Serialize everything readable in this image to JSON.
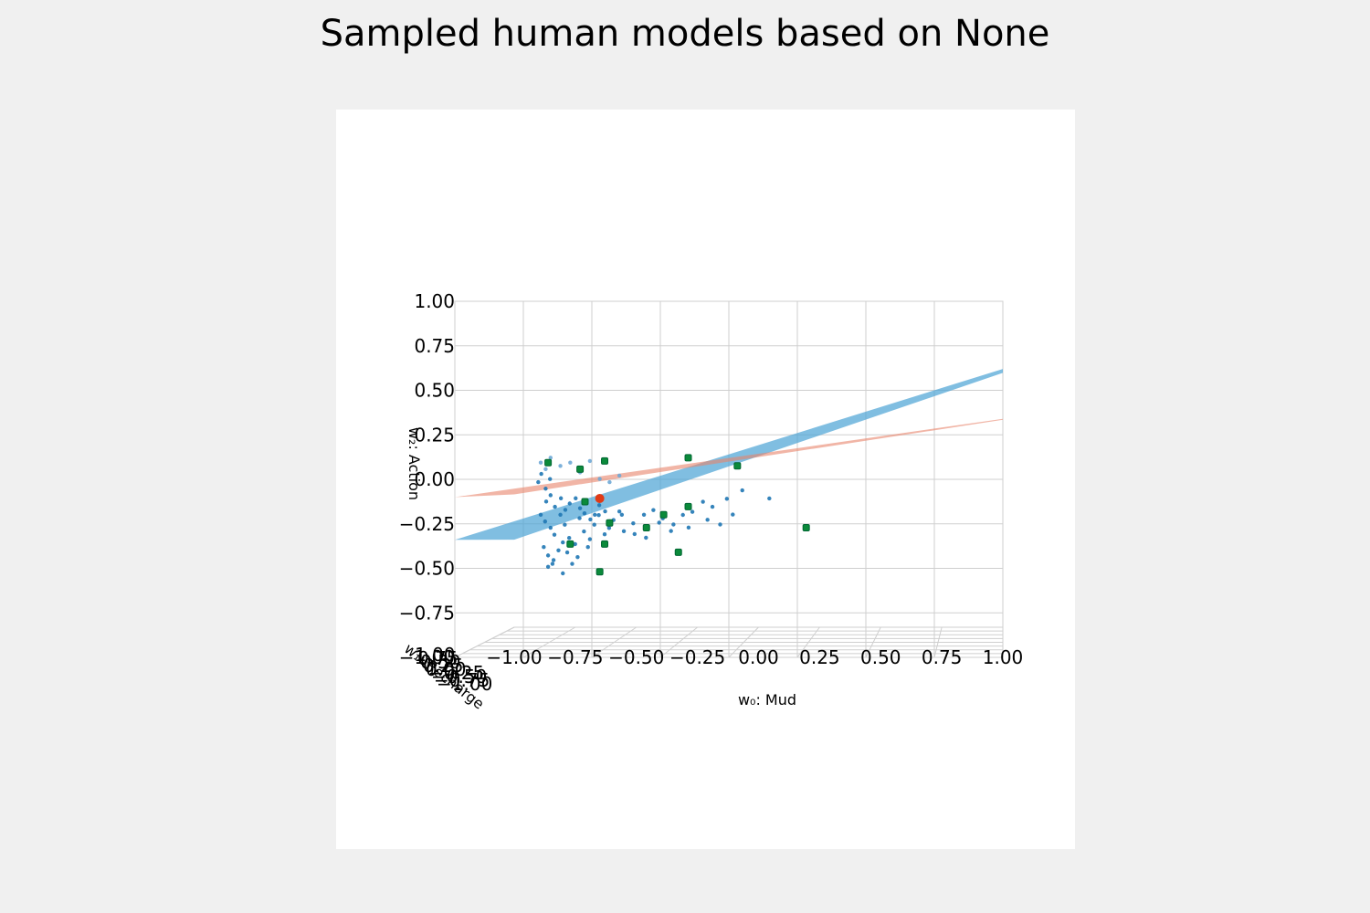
{
  "figure": {
    "title": "Sampled human models based on None"
  },
  "colors": {
    "figure_bg": "#f0f0f0",
    "axes_bg": "#ffffff",
    "grid": "#cfcfcf",
    "plane_blue": "#4aa3d4",
    "plane_red": "#e8836b",
    "plane_orange_overlap": "#c9873f",
    "samples_blue": "#1f77b4",
    "samples_light": "#6fa8d6",
    "highlight_green": "#0b8a3a",
    "mean_red": "#e03a16"
  },
  "chart_data": {
    "type": "scatter",
    "projection": "3d",
    "title": "Sampled human models based on None",
    "xlabel": "w₀: Mud",
    "ylabel": "w₁: Recharge",
    "zlabel": "w₂: Action",
    "xlim": [
      -1.0,
      1.0
    ],
    "ylim": [
      -1.0,
      1.0
    ],
    "zlim": [
      -1.0,
      1.0
    ],
    "x_ticks": [
      "−1.00",
      "−0.75",
      "−0.50",
      "−0.25",
      "0.00",
      "0.25",
      "0.50",
      "0.75",
      "1.00"
    ],
    "y_ticks": [
      "−1.00",
      "−0.75",
      "−0.50",
      "−0.25",
      "0.00",
      "0.25",
      "0.50",
      "0.75",
      "1.00"
    ],
    "z_ticks": [
      "1.00",
      "0.75",
      "0.50",
      "0.25",
      "0.00",
      "−0.25",
      "−0.50",
      "−0.75",
      "−1.00"
    ],
    "grid": true,
    "surfaces": [
      {
        "name": "",
        "color": "#4aa3d4",
        "z_at_x_min": -0.46,
        "z_at_x_max": 0.57,
        "slope_along_y": 0.6
      },
      {
        "name": "",
        "color": "#e8836b",
        "z_at_x_min": -0.18,
        "z_at_x_max": 0.28,
        "slope_along_y": 0.35
      }
    ],
    "series": [
      {
        "name": "",
        "color": "#1f77b4",
        "marker": "dot",
        "points": [
          [
            -0.88,
            -0.9,
            -0.3
          ],
          [
            -0.86,
            -0.88,
            -0.34
          ],
          [
            -0.84,
            -0.9,
            -0.38
          ],
          [
            -0.82,
            -0.86,
            -0.42
          ],
          [
            -0.8,
            -0.9,
            -0.3
          ],
          [
            -0.78,
            -0.88,
            -0.36
          ],
          [
            -0.76,
            -0.86,
            -0.44
          ],
          [
            -0.74,
            -0.9,
            -0.48
          ],
          [
            -0.72,
            -0.88,
            -0.32
          ],
          [
            -0.7,
            -0.86,
            -0.4
          ],
          [
            -0.68,
            -0.9,
            -0.45
          ],
          [
            -0.66,
            -0.88,
            -0.36
          ],
          [
            -0.64,
            -0.86,
            -0.3
          ],
          [
            -0.62,
            -0.9,
            -0.42
          ],
          [
            -0.6,
            -0.88,
            -0.38
          ],
          [
            -0.58,
            -0.86,
            -0.33
          ],
          [
            -0.56,
            -0.9,
            -0.28
          ],
          [
            -0.54,
            -0.88,
            -0.4
          ],
          [
            -0.5,
            -0.86,
            -0.35
          ],
          [
            -0.46,
            -0.9,
            -0.3
          ],
          [
            -0.42,
            -0.88,
            -0.27
          ],
          [
            -0.38,
            -0.86,
            -0.32
          ],
          [
            -0.34,
            -0.9,
            -0.36
          ],
          [
            -0.3,
            -0.88,
            -0.3
          ],
          [
            -0.26,
            -0.86,
            -0.28
          ],
          [
            -0.22,
            -0.9,
            -0.22
          ],
          [
            -0.18,
            -0.88,
            -0.25
          ],
          [
            -0.12,
            -0.86,
            -0.2
          ],
          [
            -0.06,
            -0.9,
            -0.15
          ],
          [
            -0.87,
            -0.92,
            -0.5
          ],
          [
            -0.85,
            -0.9,
            -0.55
          ],
          [
            -0.83,
            -0.88,
            -0.6
          ],
          [
            -0.81,
            -0.92,
            -0.52
          ],
          [
            -0.79,
            -0.9,
            -0.47
          ],
          [
            -0.77,
            -0.88,
            -0.53
          ],
          [
            -0.86,
            -0.92,
            -0.22
          ],
          [
            -0.84,
            -0.9,
            -0.18
          ],
          [
            -0.82,
            -0.88,
            -0.25
          ],
          [
            -0.8,
            -0.92,
            -0.2
          ],
          [
            -0.78,
            -0.9,
            -0.27
          ],
          [
            -0.76,
            -0.88,
            -0.23
          ],
          [
            -0.74,
            -0.92,
            -0.2
          ],
          [
            -0.72,
            -0.9,
            -0.26
          ],
          [
            -0.7,
            -0.88,
            -0.29
          ],
          [
            -0.68,
            -0.92,
            -0.33
          ],
          [
            -0.66,
            -0.9,
            -0.3
          ],
          [
            -0.64,
            -0.88,
            -0.24
          ],
          [
            -0.62,
            -0.92,
            -0.28
          ],
          [
            -0.6,
            -0.9,
            -0.34
          ],
          [
            -0.4,
            -0.92,
            -0.35
          ],
          [
            -0.35,
            -0.9,
            -0.4
          ],
          [
            -0.2,
            -0.88,
            -0.33
          ],
          [
            -0.1,
            -0.92,
            -0.3
          ],
          [
            0.05,
            -0.9,
            -0.2
          ],
          [
            -0.28,
            -0.92,
            -0.38
          ],
          [
            -0.15,
            -0.9,
            -0.36
          ],
          [
            -0.5,
            -0.92,
            -0.42
          ],
          [
            -0.45,
            -0.88,
            -0.44
          ],
          [
            -0.55,
            -0.9,
            -0.3
          ],
          [
            -0.89,
            -0.9,
            -0.1
          ],
          [
            -0.88,
            -0.92,
            -0.05
          ],
          [
            -0.86,
            -0.9,
            -0.14
          ],
          [
            -0.84,
            -0.88,
            -0.08
          ],
          [
            -0.85,
            -0.9,
            -0.62
          ],
          [
            -0.83,
            -0.92,
            -0.58
          ],
          [
            -0.79,
            -0.9,
            -0.66
          ],
          [
            -0.75,
            -0.88,
            -0.6
          ],
          [
            -0.73,
            -0.9,
            -0.56
          ],
          [
            -0.69,
            -0.92,
            -0.5
          ]
        ]
      },
      {
        "name": "",
        "color": "#6fa8d6",
        "marker": "dot",
        "points": [
          [
            -0.88,
            -0.9,
            0.02
          ],
          [
            -0.86,
            -0.9,
            -0.02
          ],
          [
            -0.84,
            -0.9,
            0.05
          ],
          [
            -0.8,
            -0.9,
            0.0
          ],
          [
            -0.76,
            -0.9,
            0.02
          ],
          [
            -0.72,
            -0.9,
            -0.04
          ],
          [
            -0.68,
            -0.9,
            0.03
          ],
          [
            -0.64,
            -0.9,
            -0.08
          ],
          [
            -0.6,
            -0.9,
            -0.1
          ],
          [
            -0.56,
            -0.9,
            -0.06
          ]
        ]
      },
      {
        "name": "",
        "color": "#0b8a3a",
        "marker": "square",
        "points": [
          [
            -0.85,
            -0.9,
            0.02
          ],
          [
            -0.72,
            -0.9,
            -0.02
          ],
          [
            -0.62,
            -0.9,
            0.03
          ],
          [
            -0.28,
            -0.9,
            0.05
          ],
          [
            -0.08,
            -0.9,
            0.0
          ],
          [
            -0.7,
            -0.9,
            -0.22
          ],
          [
            -0.28,
            -0.9,
            -0.25
          ],
          [
            -0.38,
            -0.9,
            -0.3
          ],
          [
            -0.6,
            -0.9,
            -0.35
          ],
          [
            -0.45,
            -0.9,
            -0.38
          ],
          [
            0.2,
            -0.9,
            -0.38
          ],
          [
            -0.76,
            -0.9,
            -0.48
          ],
          [
            -0.62,
            -0.9,
            -0.48
          ],
          [
            -0.32,
            -0.9,
            -0.53
          ],
          [
            -0.64,
            -0.9,
            -0.65
          ]
        ]
      },
      {
        "name": "",
        "color": "#e03a16",
        "marker": "dot-large",
        "points": [
          [
            -0.64,
            -0.9,
            -0.2
          ]
        ]
      }
    ]
  }
}
